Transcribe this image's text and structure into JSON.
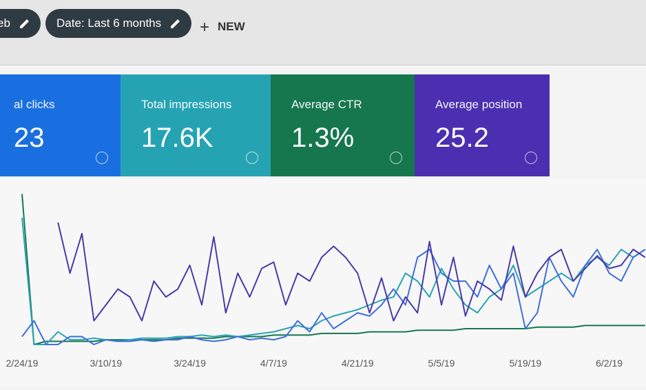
{
  "toolbar": {
    "chips": [
      "eb",
      "Date: Last 6 months"
    ],
    "new_button": "NEW"
  },
  "metrics": [
    {
      "label": "al clicks",
      "value": "23",
      "color": "#1a6fe0"
    },
    {
      "label": "Total impressions",
      "value": "17.6K",
      "color": "#26a3b3"
    },
    {
      "label": "Average CTR",
      "value": "1.3%",
      "color": "#16774f"
    },
    {
      "label": "Average position",
      "value": "25.2",
      "color": "#4b2fb0"
    }
  ],
  "chart_data": {
    "type": "line",
    "categories": [
      "2/24/19",
      null,
      null,
      null,
      null,
      null,
      null,
      "3/10/19",
      null,
      null,
      null,
      null,
      null,
      null,
      "3/24/19",
      null,
      null,
      null,
      null,
      null,
      null,
      "4/7/19",
      null,
      null,
      null,
      null,
      null,
      null,
      "4/21/19",
      null,
      null,
      null,
      null,
      null,
      null,
      "5/5/19",
      null,
      null,
      null,
      null,
      null,
      null,
      "5/19/19",
      null,
      null,
      null,
      null,
      null,
      null,
      "6/2/19",
      null,
      null,
      null
    ],
    "series": [
      {
        "color": "#16774f",
        "values": [
          95,
          0,
          2,
          2,
          2,
          2,
          2,
          3,
          3,
          3,
          3,
          3,
          3,
          4,
          4,
          4,
          4,
          5,
          5,
          5,
          5,
          6,
          6,
          6,
          6,
          7,
          7,
          7,
          7,
          8,
          8,
          8,
          8,
          9,
          9,
          9,
          9,
          10,
          10,
          10,
          10,
          10,
          10,
          11,
          11,
          11,
          11,
          12,
          12,
          12,
          12,
          12,
          12
        ]
      },
      {
        "color": "#2aa4b4",
        "values": [
          80,
          0,
          0,
          8,
          3,
          3,
          4,
          3,
          2,
          3,
          4,
          4,
          4,
          5,
          5,
          6,
          5,
          6,
          5,
          6,
          7,
          8,
          10,
          12,
          10,
          15,
          18,
          20,
          22,
          25,
          28,
          30,
          45,
          40,
          30,
          48,
          35,
          25,
          20,
          30,
          35,
          50,
          30,
          35,
          40,
          45,
          40,
          50,
          55,
          50,
          60,
          55,
          60
        ]
      },
      {
        "color": "#3f6fdc",
        "values": [
          5,
          15,
          0,
          0,
          5,
          5,
          0,
          3,
          2,
          2,
          3,
          2,
          3,
          3,
          5,
          3,
          2,
          3,
          5,
          3,
          4,
          3,
          5,
          15,
          8,
          20,
          10,
          15,
          20,
          18,
          25,
          35,
          25,
          55,
          60,
          45,
          40,
          40,
          30,
          50,
          35,
          45,
          10,
          20,
          55,
          40,
          30,
          50,
          60,
          45,
          40,
          55,
          60
        ]
      },
      {
        "color": "#4a3aa8",
        "values": [
          null,
          null,
          null,
          77,
          45,
          70,
          15,
          25,
          35,
          30,
          15,
          40,
          30,
          35,
          50,
          25,
          68,
          20,
          45,
          30,
          48,
          52,
          25,
          45,
          40,
          55,
          62,
          55,
          45,
          20,
          42,
          15,
          30,
          20,
          65,
          25,
          55,
          18,
          40,
          35,
          28,
          62,
          30,
          45,
          55,
          60,
          40,
          48,
          56,
          48,
          50,
          60,
          55
        ]
      }
    ]
  }
}
